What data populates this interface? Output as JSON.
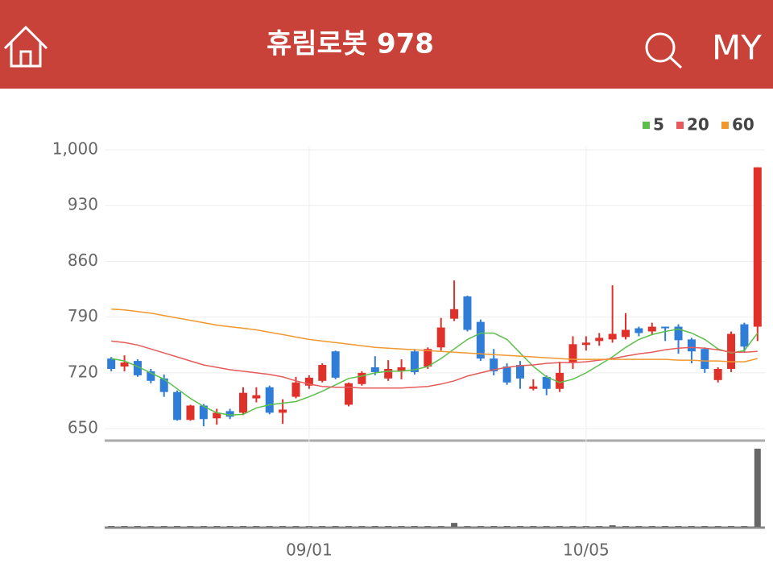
{
  "header": {
    "title": "휴림로봇 978",
    "my": "MY"
  },
  "chart_data": {
    "type": "candlestick",
    "categories": [
      null,
      null,
      null,
      null,
      null,
      null,
      null,
      null,
      null,
      null,
      null,
      null,
      null,
      null,
      null,
      "09/01",
      null,
      null,
      null,
      null,
      null,
      null,
      null,
      null,
      null,
      null,
      null,
      null,
      null,
      null,
      null,
      null,
      null,
      null,
      null,
      null,
      "10/05",
      null,
      null,
      null,
      null,
      null,
      null,
      null,
      null,
      null,
      null,
      null,
      null,
      null
    ],
    "open": [
      738,
      728,
      735,
      722,
      713,
      696,
      661,
      679,
      663,
      672,
      670,
      688,
      702,
      670,
      690,
      704,
      710,
      747,
      680,
      706,
      727,
      713,
      722,
      747,
      728,
      752,
      788,
      816,
      784,
      738,
      728,
      730,
      700,
      715,
      700,
      733,
      755,
      760,
      762,
      765,
      776,
      772,
      778,
      778,
      762,
      750,
      711,
      725,
      781,
      778
    ],
    "high": [
      740,
      742,
      737,
      725,
      718,
      698,
      680,
      681,
      675,
      675,
      702,
      702,
      704,
      687,
      715,
      717,
      732,
      748,
      708,
      722,
      741,
      736,
      737,
      750,
      752,
      789,
      836,
      817,
      787,
      750,
      732,
      735,
      712,
      717,
      734,
      766,
      766,
      770,
      830,
      795,
      778,
      783,
      778,
      781,
      764,
      752,
      727,
      772,
      783,
      978
    ],
    "low": [
      722,
      722,
      715,
      707,
      690,
      660,
      660,
      653,
      655,
      662,
      667,
      683,
      668,
      656,
      688,
      700,
      708,
      712,
      678,
      704,
      717,
      710,
      712,
      718,
      725,
      748,
      785,
      772,
      735,
      717,
      705,
      700,
      698,
      692,
      696,
      725,
      748,
      754,
      758,
      762,
      766,
      768,
      760,
      744,
      732,
      720,
      708,
      721,
      746,
      760
    ],
    "close": [
      725,
      733,
      717,
      710,
      696,
      661,
      679,
      662,
      670,
      665,
      695,
      692,
      670,
      674,
      708,
      714,
      730,
      714,
      707,
      720,
      721,
      725,
      727,
      721,
      750,
      777,
      800,
      774,
      738,
      722,
      708,
      713,
      703,
      700,
      720,
      756,
      758,
      764,
      769,
      774,
      770,
      778,
      776,
      761,
      747,
      725,
      725,
      769,
      753,
      978
    ],
    "up_color": "#e0302a",
    "down_color": "#2f7dd6",
    "series": [
      {
        "name": "5",
        "color": "#5cbf4a",
        "values": [
          738,
          735,
          728,
          720,
          712,
          700,
          688,
          678,
          670,
          667,
          668,
          676,
          680,
          682,
          684,
          690,
          697,
          705,
          713,
          716,
          720,
          722,
          722,
          724,
          728,
          738,
          750,
          762,
          770,
          770,
          762,
          745,
          728,
          715,
          708,
          712,
          720,
          730,
          740,
          752,
          762,
          768,
          772,
          775,
          770,
          762,
          750,
          745,
          748,
          770
        ]
      },
      {
        "name": "20",
        "color": "#e65a5a",
        "values": [
          760,
          758,
          755,
          750,
          745,
          740,
          735,
          730,
          727,
          724,
          722,
          720,
          718,
          715,
          710,
          706,
          703,
          702,
          702,
          701,
          701,
          701,
          701,
          702,
          703,
          706,
          710,
          716,
          720,
          724,
          727,
          729,
          730,
          732,
          733,
          733,
          734,
          736,
          738,
          741,
          744,
          746,
          749,
          751,
          752,
          751,
          749,
          746,
          746,
          747
        ]
      },
      {
        "name": "60",
        "color": "#f0982e",
        "values": [
          800,
          799,
          797,
          795,
          792,
          789,
          786,
          783,
          780,
          778,
          776,
          774,
          771,
          768,
          765,
          762,
          760,
          758,
          756,
          754,
          752,
          751,
          750,
          749,
          748,
          747,
          746,
          745,
          744,
          743,
          742,
          741,
          740,
          739,
          738,
          737,
          737,
          737,
          737,
          737,
          737,
          737,
          737,
          736,
          736,
          735,
          735,
          734,
          734,
          738
        ]
      }
    ],
    "volume": [
      1,
      1,
      1,
      1,
      1,
      1,
      1,
      1,
      1,
      1,
      1,
      1,
      1,
      1,
      1,
      1,
      1,
      1,
      1,
      1,
      1,
      1,
      1,
      1,
      1,
      1,
      5,
      1,
      1,
      1,
      1,
      1,
      1,
      1,
      1,
      1,
      1,
      1,
      2,
      1,
      1,
      1,
      1,
      1,
      1,
      1,
      1,
      1,
      1,
      100
    ],
    "volume_color": "#666666",
    "ylim": [
      635,
      1004
    ],
    "yticks": [
      650,
      720,
      790,
      860,
      930,
      {
        "value": 1000,
        "label": "1,000"
      }
    ],
    "grid": true
  }
}
